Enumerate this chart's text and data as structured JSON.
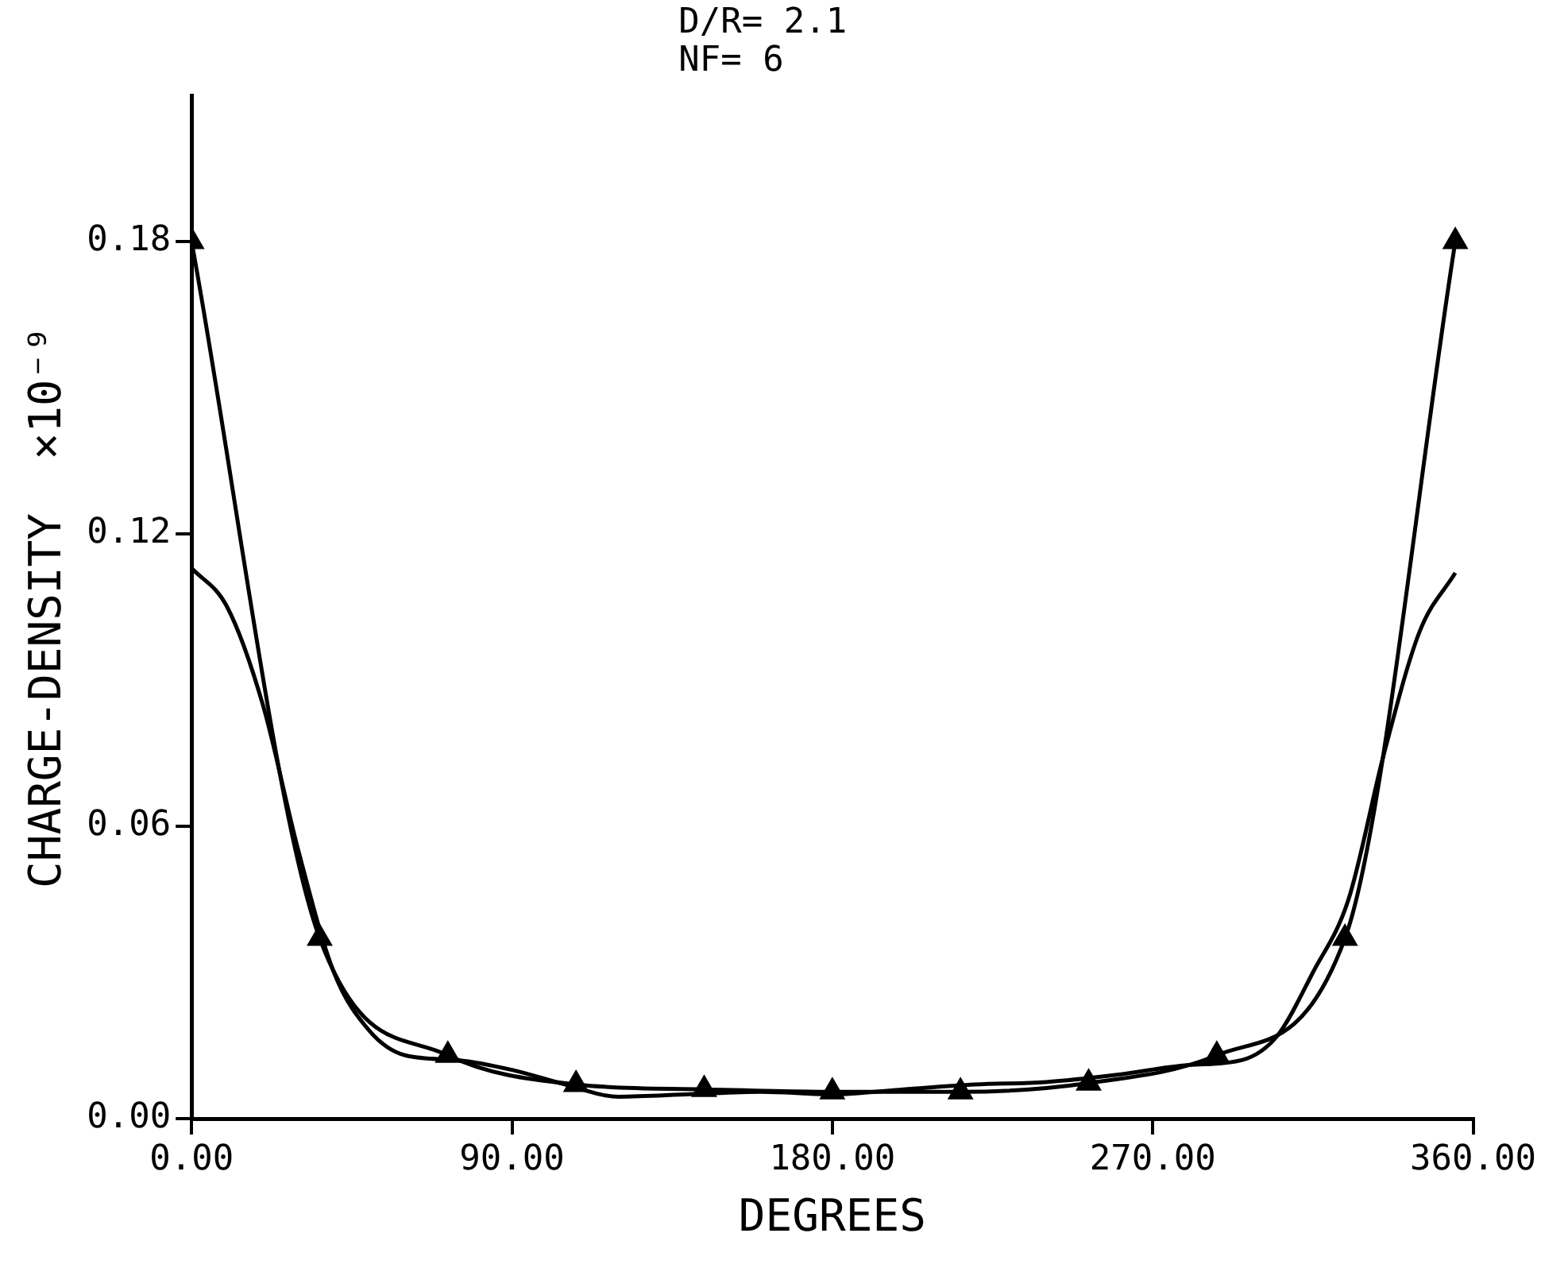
{
  "chart_data": {
    "type": "line",
    "xlabel": "DEGREES",
    "ylabel": "CHARGE-DENSITY  ×10⁻⁹",
    "annotations": [
      "D/R= 2.1",
      "NF= 6"
    ],
    "xlim": [
      0,
      360
    ],
    "ylim": [
      0,
      0.21
    ],
    "xticks": [
      {
        "value": 0,
        "label": "0.00"
      },
      {
        "value": 90,
        "label": "90.00"
      },
      {
        "value": 180,
        "label": "180.00"
      },
      {
        "value": 270,
        "label": "270.00"
      },
      {
        "value": 360,
        "label": "360.00"
      }
    ],
    "yticks": [
      {
        "value": 0,
        "label": "0.00"
      },
      {
        "value": 0.06,
        "label": "0.06"
      },
      {
        "value": 0.12,
        "label": "0.12"
      },
      {
        "value": 0.18,
        "label": "0.18"
      }
    ],
    "grid": false,
    "legend": false,
    "series": [
      {
        "color": "#000000",
        "marker": "triangle",
        "x": [
          0,
          36,
          72,
          108,
          144,
          180,
          216,
          252,
          288,
          324,
          355
        ],
        "values": [
          0.18,
          0.037,
          0.013,
          0.007,
          0.006,
          0.0055,
          0.0055,
          0.0073,
          0.013,
          0.037,
          0.18
        ]
      },
      {
        "color": "#000000",
        "marker": "none",
        "x": [
          0,
          10,
          20,
          30,
          40,
          50,
          60,
          75,
          90,
          105,
          120,
          140,
          160,
          180,
          200,
          220,
          240,
          260,
          280,
          295,
          305,
          315,
          325,
          335,
          345,
          355
        ],
        "values": [
          0.113,
          0.105,
          0.085,
          0.055,
          0.03,
          0.018,
          0.013,
          0.012,
          0.01,
          0.007,
          0.0045,
          0.005,
          0.0055,
          0.005,
          0.006,
          0.007,
          0.0075,
          0.009,
          0.011,
          0.012,
          0.017,
          0.03,
          0.045,
          0.075,
          0.1,
          0.112
        ]
      }
    ]
  }
}
